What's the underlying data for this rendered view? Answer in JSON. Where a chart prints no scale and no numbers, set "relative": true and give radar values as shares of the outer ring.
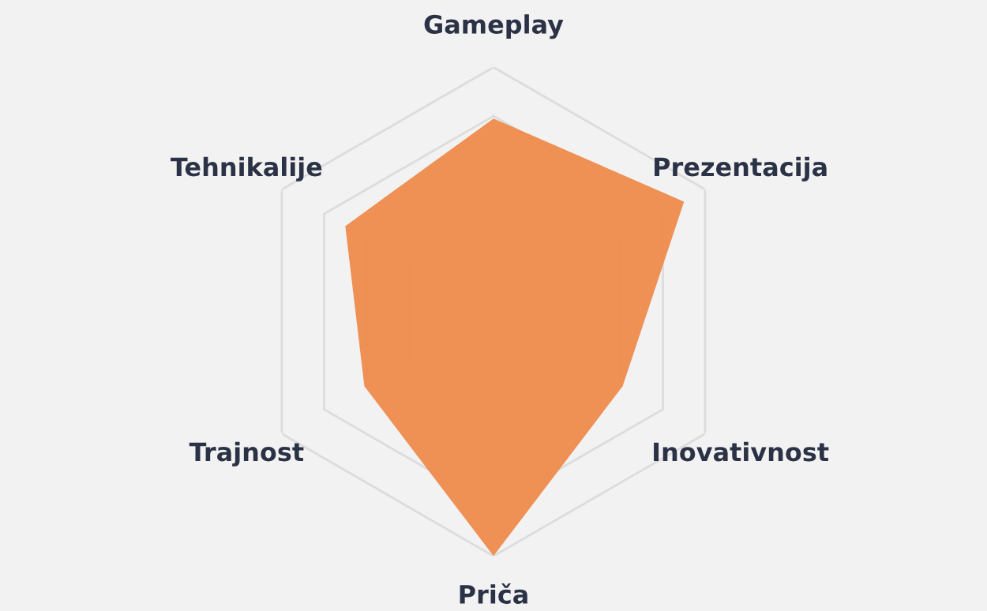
{
  "chart_data": {
    "type": "radar",
    "relative": true,
    "grid": true,
    "categories": [
      "Gameplay",
      "Prezentacija",
      "Inovativnost",
      "Priča",
      "Trajnost",
      "Tehnikalije"
    ],
    "series": [
      {
        "color": "#ee8a4c",
        "values": [
          0.79,
          0.9,
          0.61,
          1.0,
          0.61,
          0.7
        ]
      }
    ]
  }
}
